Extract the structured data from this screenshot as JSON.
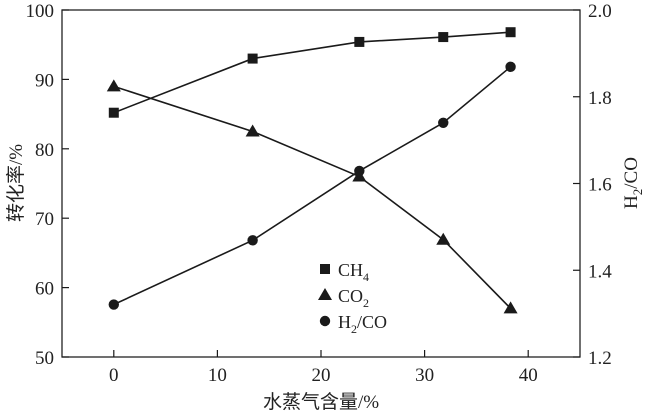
{
  "chart_data": {
    "type": "line",
    "xlabel": "水蒸气含量/%",
    "ylabel": "转化率/%",
    "y2label": "H2/CO",
    "xlim": [
      -5,
      45
    ],
    "ylim": [
      50,
      100
    ],
    "y2lim": [
      1.2,
      2.0
    ],
    "xticks": [
      "0",
      "10",
      "20",
      "30",
      "40"
    ],
    "yticks": [
      "50",
      "60",
      "70",
      "80",
      "90",
      "100"
    ],
    "y2ticks": [
      "1.2",
      "1.4",
      "1.6",
      "1.8",
      "2.0"
    ],
    "x": [
      0,
      13.4,
      23.7,
      31.8,
      38.3
    ],
    "series": [
      {
        "name": "CH4",
        "label_main": "CH",
        "label_sub": "4",
        "marker": "square",
        "axis": "left",
        "values": [
          85.2,
          93.0,
          95.4,
          96.1,
          96.8
        ]
      },
      {
        "name": "CO2",
        "label_main": "CO",
        "label_sub": "2",
        "marker": "triangle",
        "axis": "left",
        "values": [
          89.0,
          82.5,
          76.0,
          66.9,
          57.0
        ]
      },
      {
        "name": "H2/CO",
        "label_main": "H",
        "label_sub": "2",
        "label_rest": "/CO",
        "marker": "circle",
        "axis": "right",
        "values": [
          1.321,
          1.469,
          1.629,
          1.74,
          1.869
        ]
      }
    ],
    "legend": "bottom-center",
    "grid": false,
    "color": "#1a1a1a"
  }
}
